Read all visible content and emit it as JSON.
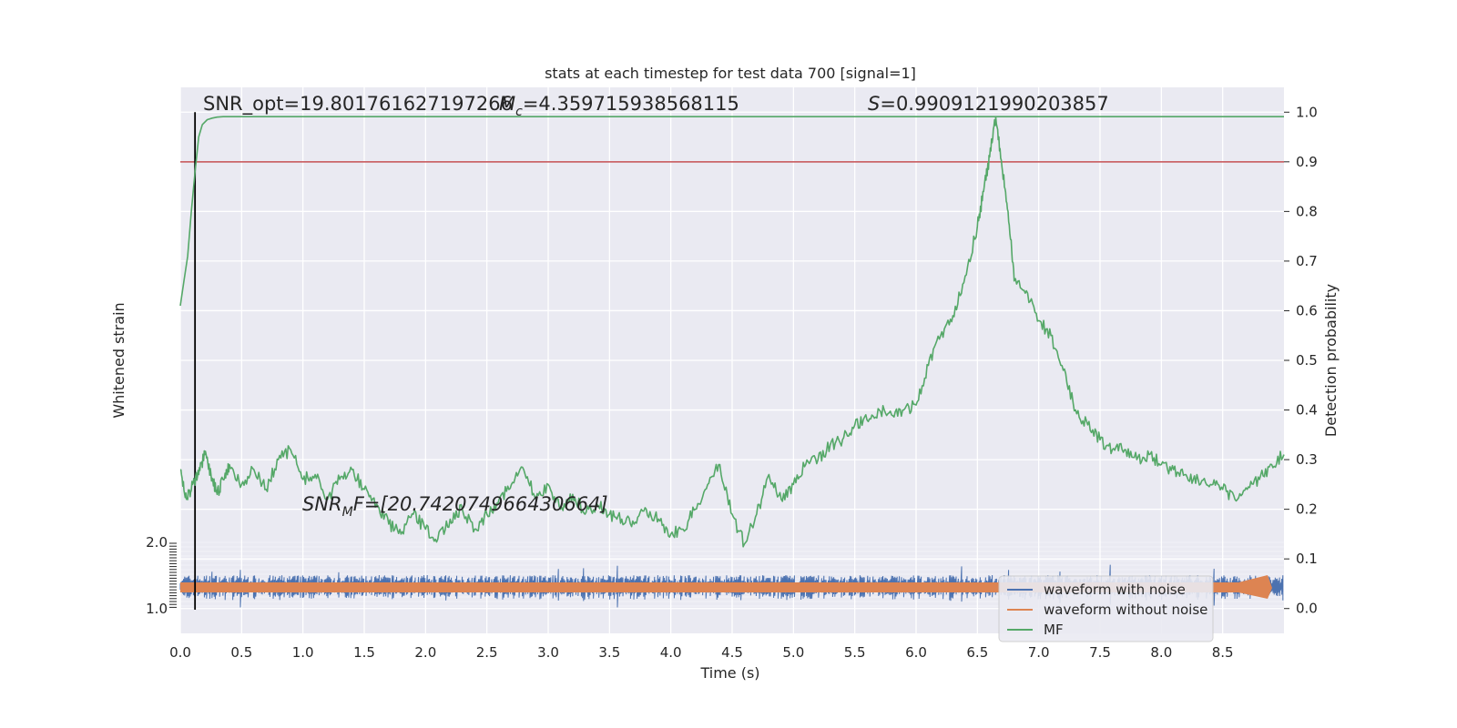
{
  "chart_data": {
    "type": "line",
    "title": "stats at each timestep for test data 700 [signal=1]",
    "xlabel": "Time (s)",
    "ylabel_left": "Whitened strain",
    "ylabel_right": "Detection probability",
    "xlim": [
      0.0,
      9.0
    ],
    "ylim_right": [
      -0.05,
      1.05
    ],
    "grid": true,
    "x_ticks": [
      "0.0",
      "0.5",
      "1.0",
      "1.5",
      "2.0",
      "2.5",
      "3.0",
      "3.5",
      "4.0",
      "4.5",
      "5.0",
      "5.5",
      "6.0",
      "6.5",
      "7.0",
      "7.5",
      "8.0",
      "8.5"
    ],
    "y_ticks_right": [
      "0.0",
      "0.1",
      "0.2",
      "0.3",
      "0.4",
      "0.5",
      "0.6",
      "0.7",
      "0.8",
      "0.9",
      "1.0"
    ],
    "left_axis_tick_labels": [
      "2.0",
      "1.0"
    ],
    "annotations": {
      "snr_opt": "SNR_opt=19.801761627197266",
      "mc_symbol": "M",
      "mc_sub": "c",
      "mc_value": "=4.359715938568115",
      "s_symbol": "S",
      "s_value": "=0.9909121990203857",
      "snr_mf_symbol": "SNR",
      "snr_mf_sub": "M",
      "snr_mf_value": "F=[20.742074966430664]"
    },
    "threshold": 0.9,
    "marker_time": 0.12,
    "legend": {
      "placement": "lower-right",
      "entries": [
        {
          "label": "waveform with noise",
          "color": "#4c72b0"
        },
        {
          "label": "waveform without noise",
          "color": "#dd8452"
        },
        {
          "label": "MF",
          "color": "#55a868"
        }
      ]
    },
    "series": [
      {
        "name": "MF",
        "color": "#55a868",
        "x": [
          0.0,
          0.05,
          0.1,
          0.15,
          0.2,
          0.25,
          0.3,
          0.35,
          0.4,
          0.5,
          0.6,
          0.7,
          0.8,
          0.9,
          1.0,
          1.1,
          1.2,
          1.3,
          1.4,
          1.5,
          1.6,
          1.7,
          1.8,
          1.9,
          2.0,
          2.1,
          2.2,
          2.3,
          2.4,
          2.5,
          2.6,
          2.7,
          2.8,
          2.9,
          3.0,
          3.1,
          3.2,
          3.3,
          3.4,
          3.5,
          3.6,
          3.7,
          3.8,
          3.9,
          4.0,
          4.1,
          4.2,
          4.3,
          4.4,
          4.5,
          4.6,
          4.7,
          4.8,
          4.9,
          5.0,
          5.1,
          5.2,
          5.3,
          5.4,
          5.5,
          5.6,
          5.7,
          5.8,
          5.9,
          6.0,
          6.1,
          6.2,
          6.3,
          6.4,
          6.5,
          6.55,
          6.6,
          6.65,
          6.7,
          6.75,
          6.8,
          6.9,
          7.0,
          7.1,
          7.2,
          7.3,
          7.4,
          7.5,
          7.6,
          7.7,
          7.8,
          7.9,
          8.0,
          8.1,
          8.2,
          8.3,
          8.4,
          8.5,
          8.6,
          8.7,
          8.8,
          8.9,
          9.0
        ],
        "y": [
          0.28,
          0.22,
          0.25,
          0.27,
          0.31,
          0.27,
          0.23,
          0.26,
          0.29,
          0.25,
          0.28,
          0.24,
          0.3,
          0.32,
          0.26,
          0.27,
          0.22,
          0.26,
          0.28,
          0.24,
          0.21,
          0.17,
          0.15,
          0.19,
          0.16,
          0.14,
          0.18,
          0.2,
          0.16,
          0.19,
          0.22,
          0.25,
          0.28,
          0.22,
          0.25,
          0.2,
          0.23,
          0.19,
          0.21,
          0.19,
          0.18,
          0.17,
          0.2,
          0.18,
          0.15,
          0.16,
          0.2,
          0.25,
          0.29,
          0.19,
          0.13,
          0.19,
          0.27,
          0.22,
          0.25,
          0.29,
          0.3,
          0.33,
          0.34,
          0.37,
          0.38,
          0.4,
          0.39,
          0.4,
          0.41,
          0.49,
          0.55,
          0.59,
          0.67,
          0.77,
          0.84,
          0.91,
          0.99,
          0.89,
          0.8,
          0.66,
          0.64,
          0.58,
          0.55,
          0.48,
          0.4,
          0.37,
          0.34,
          0.32,
          0.32,
          0.3,
          0.31,
          0.29,
          0.28,
          0.27,
          0.26,
          0.25,
          0.24,
          0.22,
          0.24,
          0.26,
          0.29,
          0.31
        ]
      },
      {
        "name": "MF",
        "color": "#55a868",
        "x": [
          0.0,
          0.03,
          0.06,
          0.09,
          0.12,
          0.15,
          0.18,
          0.22,
          0.26,
          0.3,
          0.35,
          0.4,
          0.5,
          9.0
        ],
        "y": [
          0.61,
          0.66,
          0.71,
          0.8,
          0.88,
          0.95,
          0.975,
          0.985,
          0.988,
          0.99,
          0.991,
          0.991,
          0.991,
          0.991
        ]
      }
    ]
  }
}
